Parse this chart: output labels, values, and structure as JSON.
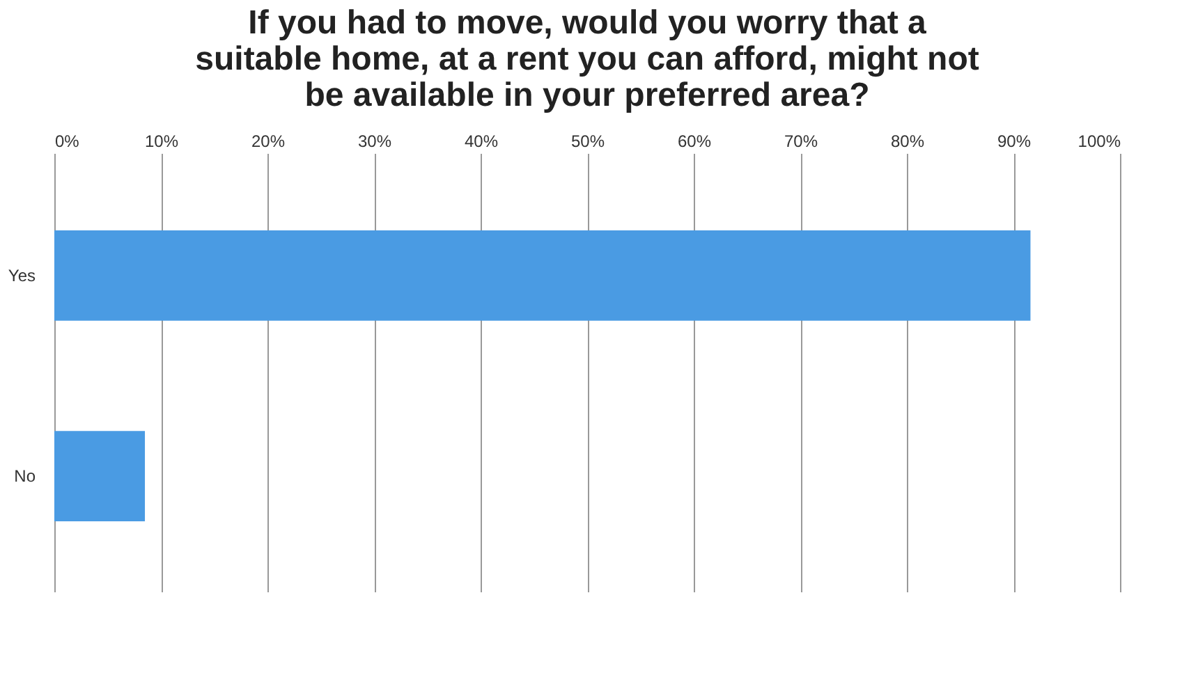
{
  "chart_data": {
    "type": "bar",
    "orientation": "horizontal",
    "title": "If you had to move, would you worry that a suitable home, at a rent you can afford, might not be available in your preferred area?",
    "categories": [
      "Yes",
      "No"
    ],
    "values": [
      91.6,
      8.5
    ],
    "color": "#4a9be3",
    "xlim": [
      0,
      100
    ],
    "xticks": [
      {
        "value": 0,
        "label": "0%"
      },
      {
        "value": 10,
        "label": "10%"
      },
      {
        "value": 20,
        "label": "20%"
      },
      {
        "value": 30,
        "label": "30%"
      },
      {
        "value": 40,
        "label": "40%"
      },
      {
        "value": 50,
        "label": "50%"
      },
      {
        "value": 60,
        "label": "60%"
      },
      {
        "value": 70,
        "label": "70%"
      },
      {
        "value": 80,
        "label": "80%"
      },
      {
        "value": 90,
        "label": "90%"
      },
      {
        "value": 100,
        "label": "100%"
      }
    ],
    "grid": "x"
  }
}
